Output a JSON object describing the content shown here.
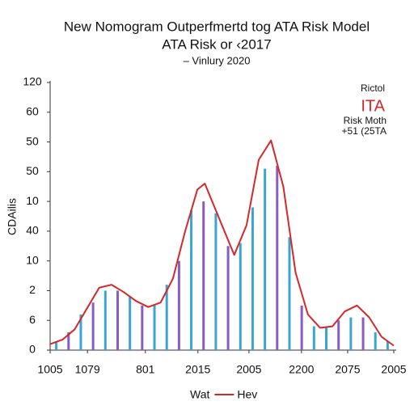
{
  "chart_data": {
    "type": "bar",
    "title": "New Nomogram Outperfmertd tog ATA Risk Model",
    "subtitle": "ATA Risk or ‹2017",
    "note": "– Vinlury 2020",
    "y_label": "CDAilis",
    "annotations": [
      "Rictol",
      "ITA",
      "Risk Moth",
      "+51 (25TA"
    ],
    "xlim": [
      0,
      7
    ],
    "xticks": [
      {
        "value": 0,
        "label": "1005"
      },
      {
        "value": 0.76,
        "label": "1079"
      },
      {
        "value": 1.94,
        "label": "801"
      },
      {
        "value": 3.01,
        "label": "2015"
      },
      {
        "value": 4.05,
        "label": "2005"
      },
      {
        "value": 5.12,
        "label": "2200"
      },
      {
        "value": 6.06,
        "label": "2075"
      },
      {
        "value": 7,
        "label": "2005"
      }
    ],
    "ylim": [
      0,
      9
    ],
    "yticks": [
      0,
      {
        "value": 1,
        "label": "6"
      },
      {
        "value": 2,
        "label": "2"
      },
      {
        "value": 3,
        "label": "10"
      },
      {
        "value": 4,
        "label": "40"
      },
      {
        "value": 5,
        "label": "10"
      },
      {
        "value": 6,
        "label": "50"
      },
      {
        "value": 7,
        "label": "50"
      },
      {
        "value": 8,
        "label": "60"
      },
      {
        "value": 9,
        "label": "120"
      }
    ],
    "series": [
      {
        "name": "Wat",
        "type": "bar",
        "x": [
          0.125,
          0.375,
          0.625,
          0.875,
          1.125,
          1.375,
          1.625,
          1.875,
          2.125,
          2.375,
          2.625,
          2.875,
          3.125,
          3.375,
          3.625,
          3.875,
          4.125,
          4.375,
          4.625,
          4.875,
          5.125,
          5.375,
          5.625,
          5.875,
          6.125,
          6.375,
          6.625,
          6.875
        ],
        "values": [
          0.3,
          0.6,
          1.2,
          1.6,
          2.0,
          2.0,
          1.8,
          1.5,
          1.5,
          2.2,
          3.0,
          4.7,
          5.0,
          4.6,
          3.5,
          3.6,
          4.8,
          6.1,
          6.2,
          3.8,
          1.5,
          0.8,
          0.8,
          1.0,
          1.1,
          1.1,
          0.6,
          0.3
        ],
        "colors": [
          "#3aa6d0",
          "#8a5cc0",
          "#3aa6d0",
          "#8a5cc0",
          "#3aa6d0",
          "#8a5cc0",
          "#3aa6d0",
          "#8a5cc0",
          "#3aa6d0",
          "#3aa6d0",
          "#8a5cc0",
          "#3aa6d0",
          "#8a5cc0",
          "#3aa6d0",
          "#8a5cc0",
          "#3aa6d0",
          "#3aa6d0",
          "#3aa6d0",
          "#8a5cc0",
          "#3aa6d0",
          "#8a5cc0",
          "#3aa6d0",
          "#3aa6d0",
          "#8a5cc0",
          "#3aa6d0",
          "#8a5cc0",
          "#3aa6d0",
          "#3aa6d0"
        ]
      },
      {
        "name": "Hev",
        "type": "line",
        "color": "#d62728",
        "x": [
          0,
          0.25,
          0.5,
          0.75,
          1.0,
          1.25,
          1.5,
          1.75,
          2.0,
          2.25,
          2.5,
          2.75,
          3.0,
          3.15,
          3.5,
          3.75,
          4.0,
          4.25,
          4.5,
          4.75,
          5.0,
          5.25,
          5.5,
          5.75,
          6.0,
          6.25,
          6.5,
          6.75,
          7.0
        ],
        "values": [
          0.2,
          0.35,
          0.7,
          1.4,
          2.1,
          2.2,
          1.95,
          1.65,
          1.45,
          1.6,
          2.4,
          4.0,
          5.4,
          5.6,
          4.2,
          3.2,
          4.2,
          6.4,
          7.05,
          5.5,
          2.6,
          1.2,
          0.75,
          0.8,
          1.3,
          1.5,
          1.1,
          0.45,
          0.15
        ]
      }
    ]
  }
}
